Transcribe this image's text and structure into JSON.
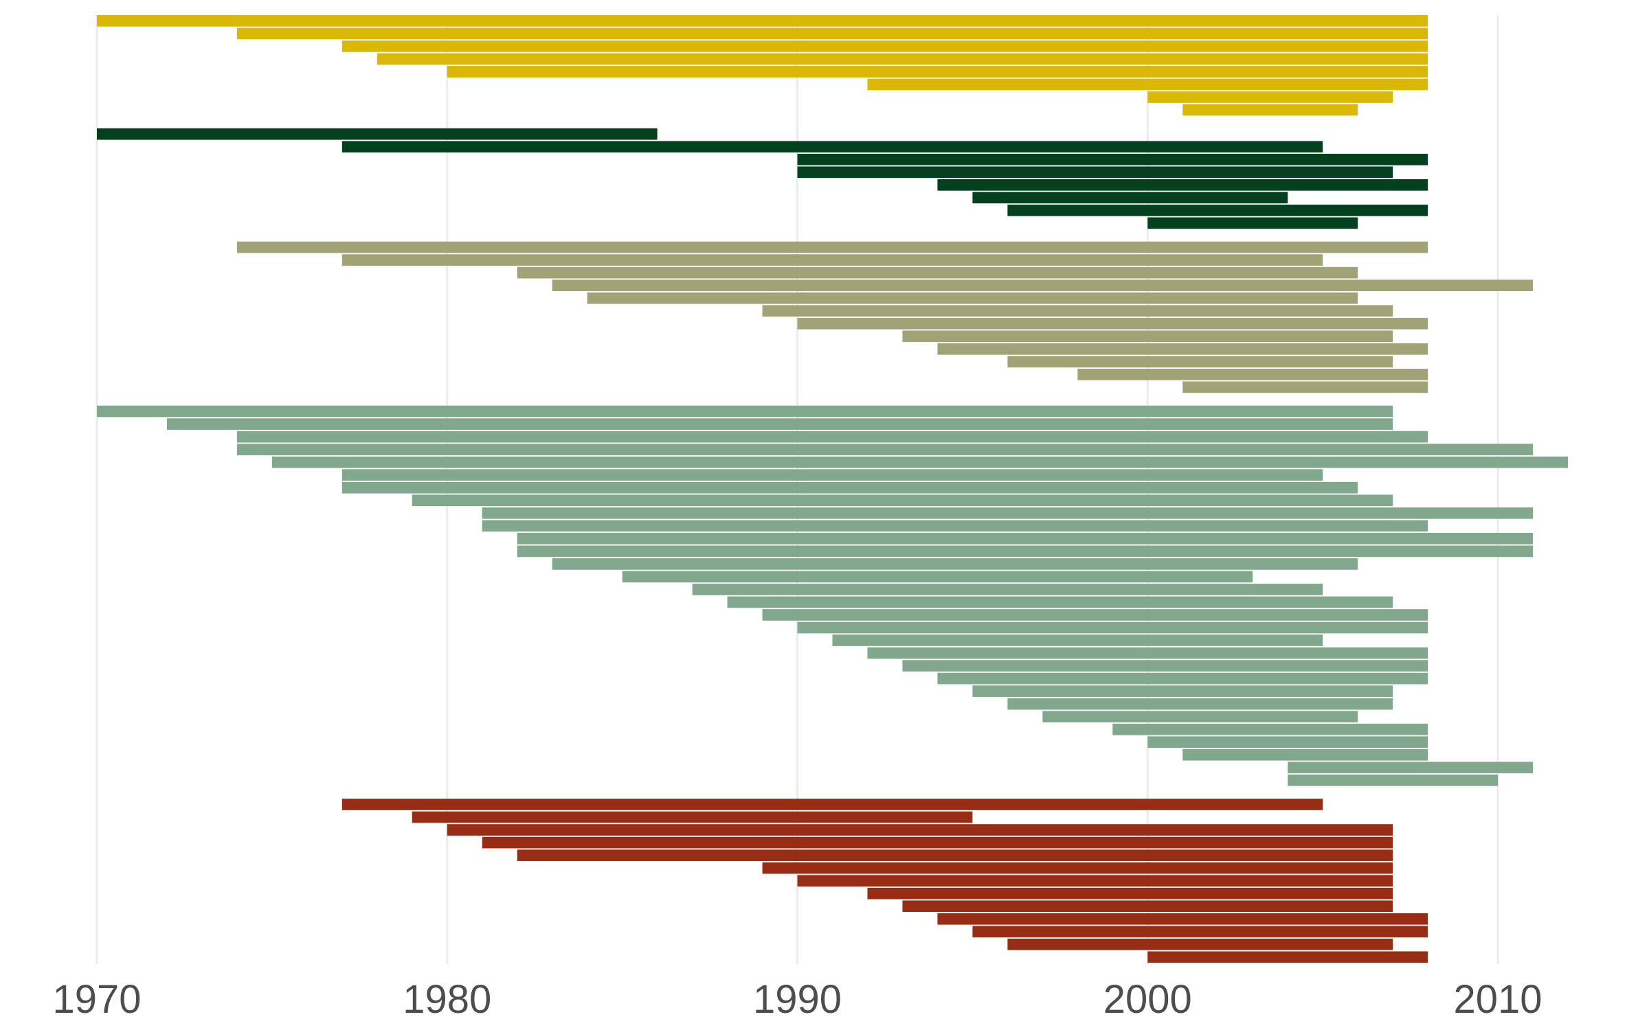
{
  "chart_data": {
    "type": "bar",
    "orientation": "horizontal",
    "title": "",
    "xlabel": "",
    "ylabel": "",
    "xlim": [
      1970,
      2013
    ],
    "x_ticks": [
      "1970",
      "1980",
      "1990",
      "2000",
      "2010"
    ],
    "grid": "vertical major gridlines only",
    "legend": "none",
    "series": [
      {
        "color": "#D9B806",
        "bars": [
          {
            "start": 1970,
            "end": 2008
          },
          {
            "start": 1974,
            "end": 2008
          },
          {
            "start": 1977,
            "end": 2008
          },
          {
            "start": 1978,
            "end": 2008
          },
          {
            "start": 1980,
            "end": 2008
          },
          {
            "start": 1992,
            "end": 2008
          },
          {
            "start": 2000,
            "end": 2007
          },
          {
            "start": 2001,
            "end": 2006
          }
        ]
      },
      {
        "color": "#03401E",
        "bars": [
          {
            "start": 1970,
            "end": 1986
          },
          {
            "start": 1977,
            "end": 2005
          },
          {
            "start": 1990,
            "end": 2008
          },
          {
            "start": 1990,
            "end": 2007
          },
          {
            "start": 1994,
            "end": 2008
          },
          {
            "start": 1995,
            "end": 2004
          },
          {
            "start": 1996,
            "end": 2008
          },
          {
            "start": 2000,
            "end": 2006
          }
        ]
      },
      {
        "color": "#A1A376",
        "bars": [
          {
            "start": 1974,
            "end": 2008
          },
          {
            "start": 1977,
            "end": 2005
          },
          {
            "start": 1982,
            "end": 2006
          },
          {
            "start": 1983,
            "end": 2011
          },
          {
            "start": 1984,
            "end": 2006
          },
          {
            "start": 1989,
            "end": 2007
          },
          {
            "start": 1990,
            "end": 2008
          },
          {
            "start": 1993,
            "end": 2007
          },
          {
            "start": 1994,
            "end": 2008
          },
          {
            "start": 1996,
            "end": 2007
          },
          {
            "start": 1998,
            "end": 2008
          },
          {
            "start": 2001,
            "end": 2008
          }
        ]
      },
      {
        "color": "#81A88D",
        "bars": [
          {
            "start": 1970,
            "end": 2007
          },
          {
            "start": 1972,
            "end": 2007
          },
          {
            "start": 1974,
            "end": 2008
          },
          {
            "start": 1974,
            "end": 2011
          },
          {
            "start": 1975,
            "end": 2012
          },
          {
            "start": 1977,
            "end": 2005
          },
          {
            "start": 1977,
            "end": 2006
          },
          {
            "start": 1979,
            "end": 2007
          },
          {
            "start": 1981,
            "end": 2011
          },
          {
            "start": 1981,
            "end": 2008
          },
          {
            "start": 1982,
            "end": 2011
          },
          {
            "start": 1982,
            "end": 2011
          },
          {
            "start": 1983,
            "end": 2006
          },
          {
            "start": 1985,
            "end": 2003
          },
          {
            "start": 1987,
            "end": 2005
          },
          {
            "start": 1988,
            "end": 2007
          },
          {
            "start": 1989,
            "end": 2008
          },
          {
            "start": 1990,
            "end": 2008
          },
          {
            "start": 1991,
            "end": 2005
          },
          {
            "start": 1992,
            "end": 2008
          },
          {
            "start": 1993,
            "end": 2008
          },
          {
            "start": 1994,
            "end": 2008
          },
          {
            "start": 1995,
            "end": 2007
          },
          {
            "start": 1996,
            "end": 2007
          },
          {
            "start": 1997,
            "end": 2006
          },
          {
            "start": 1999,
            "end": 2008
          },
          {
            "start": 2000,
            "end": 2008
          },
          {
            "start": 2001,
            "end": 2008
          },
          {
            "start": 2004,
            "end": 2011
          },
          {
            "start": 2004,
            "end": 2010
          }
        ]
      },
      {
        "color": "#972D15",
        "bars": [
          {
            "start": 1977,
            "end": 2005
          },
          {
            "start": 1979,
            "end": 1995
          },
          {
            "start": 1980,
            "end": 2007
          },
          {
            "start": 1981,
            "end": 2007
          },
          {
            "start": 1982,
            "end": 2007
          },
          {
            "start": 1989,
            "end": 2007
          },
          {
            "start": 1990,
            "end": 2007
          },
          {
            "start": 1992,
            "end": 2007
          },
          {
            "start": 1993,
            "end": 2007
          },
          {
            "start": 1994,
            "end": 2008
          },
          {
            "start": 1995,
            "end": 2008
          },
          {
            "start": 1996,
            "end": 2007
          },
          {
            "start": 2000,
            "end": 2008
          }
        ]
      }
    ]
  }
}
